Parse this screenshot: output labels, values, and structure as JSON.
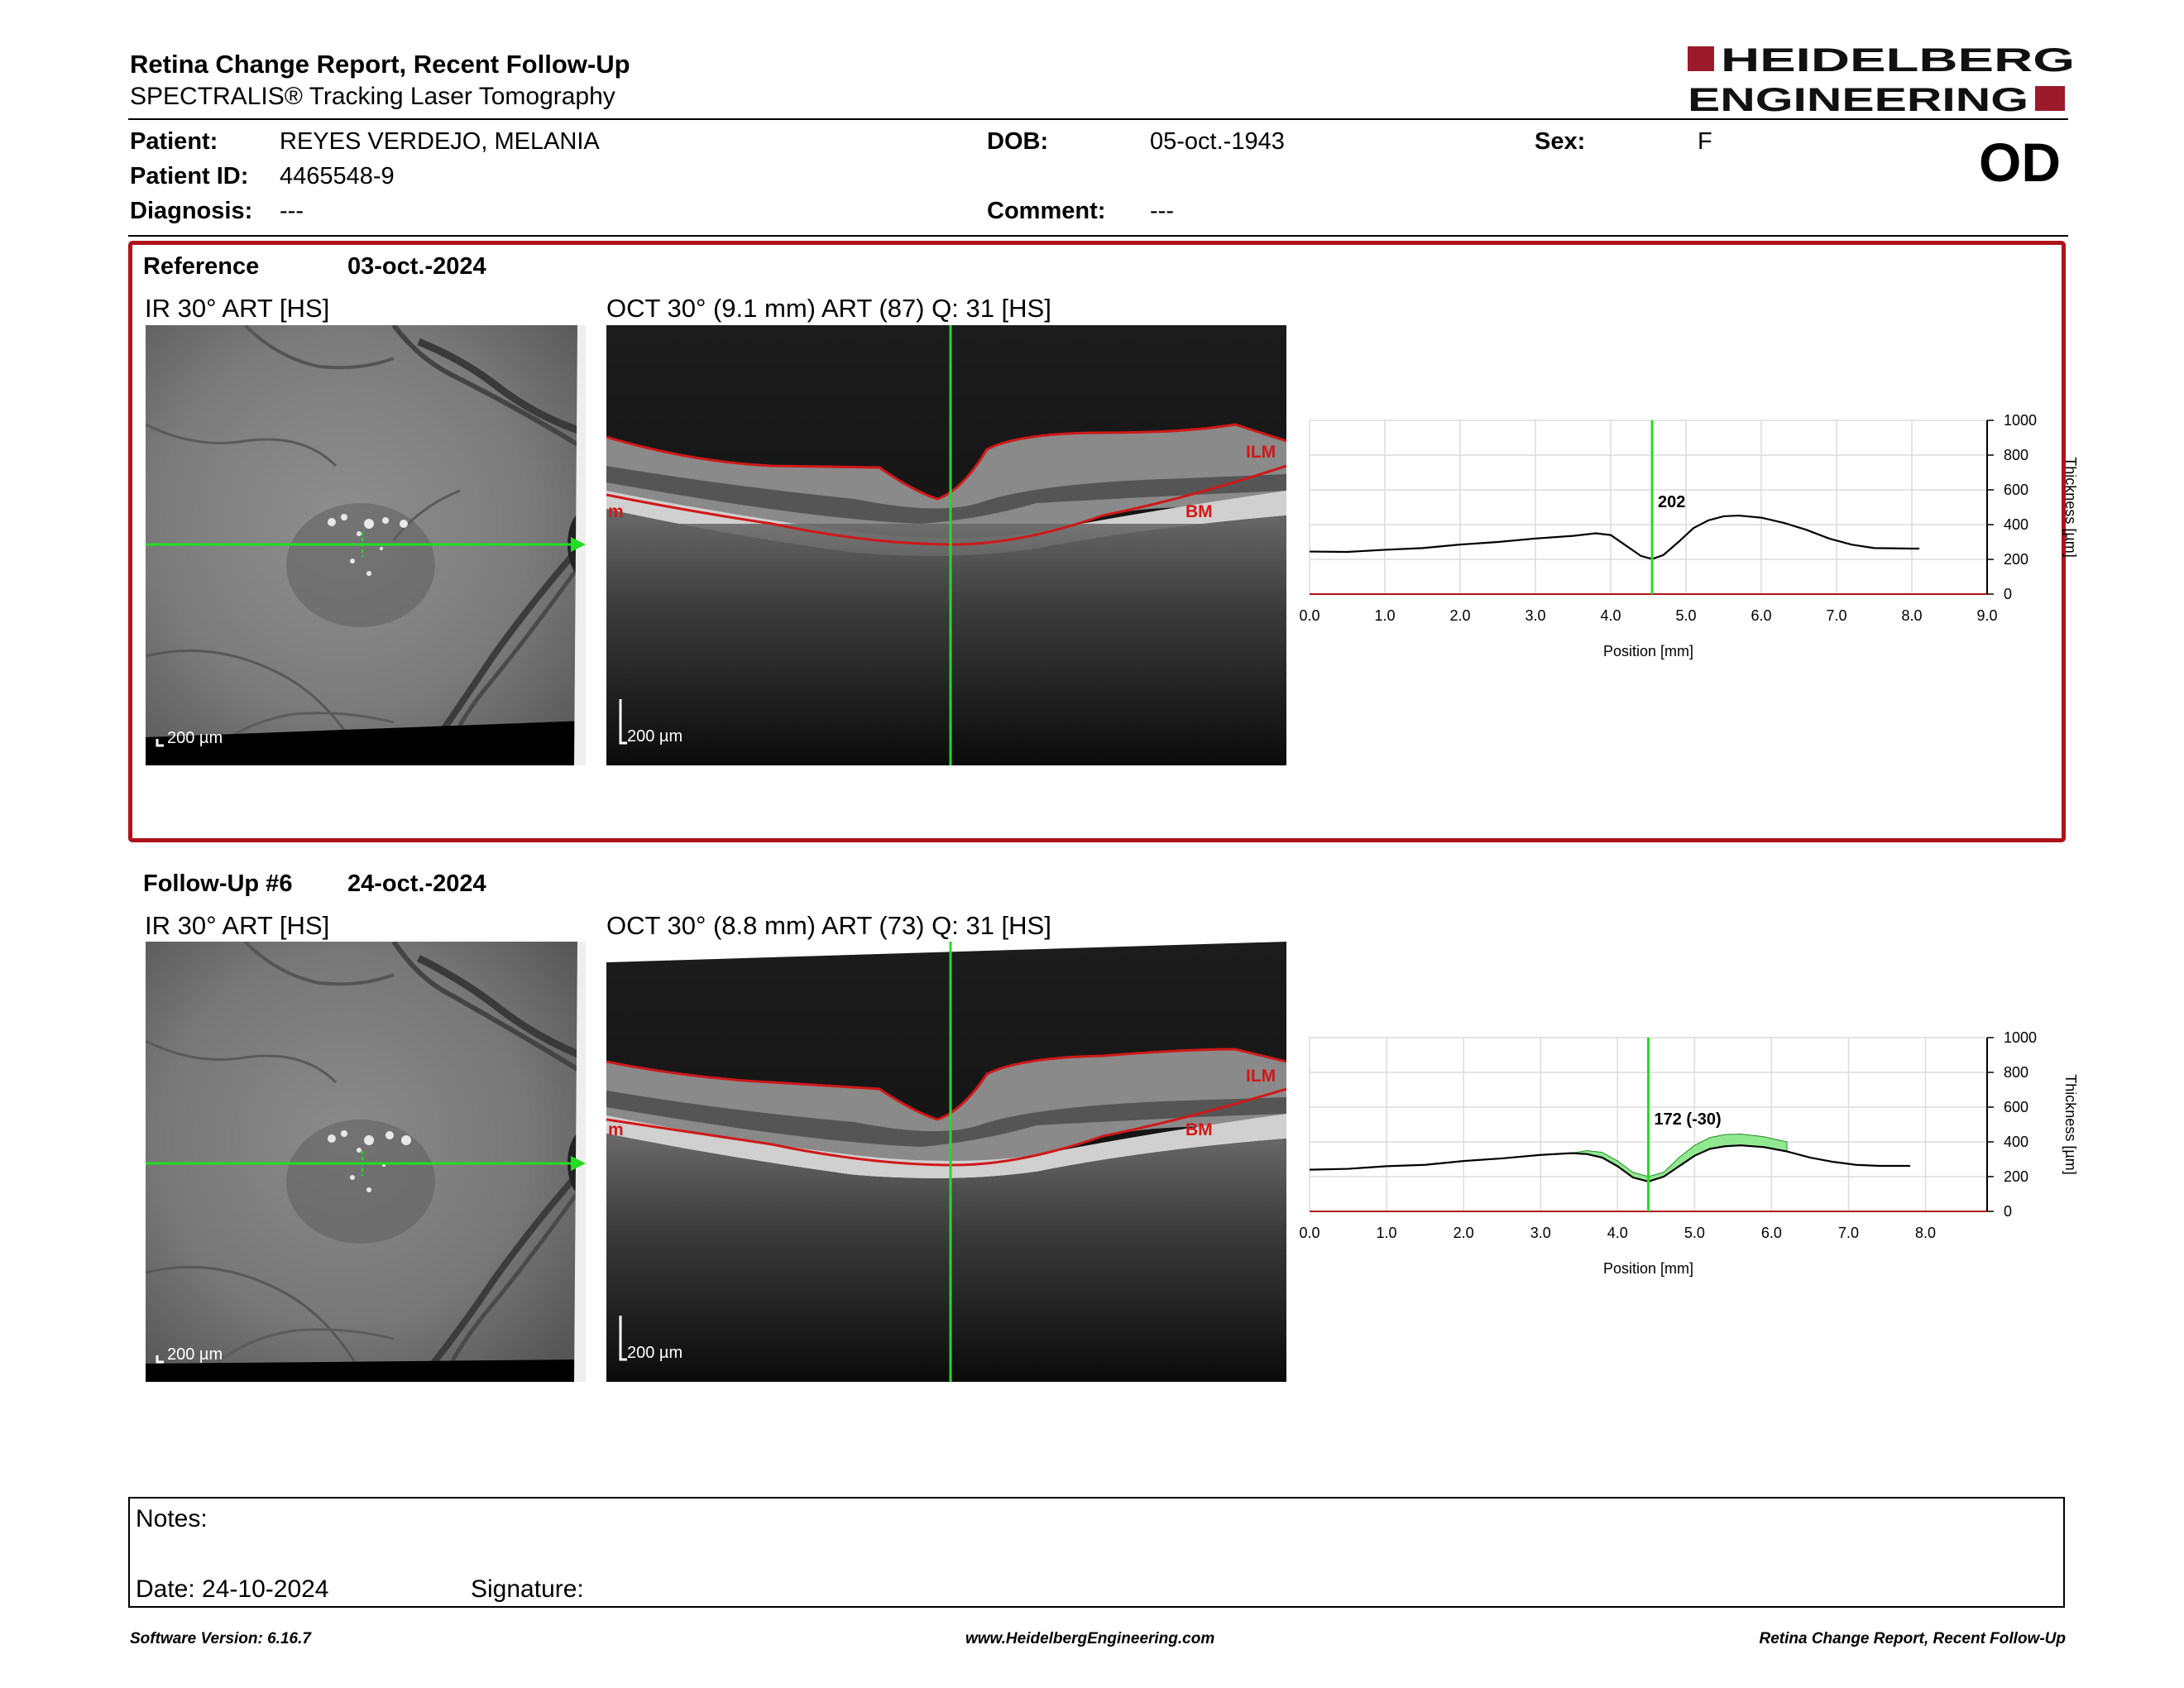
{
  "header": {
    "title": "Retina Change Report, Recent Follow-Up",
    "subtitle": "SPECTRALIS® Tracking Laser Tomography",
    "logo_line1": "HEIDELBERG",
    "logo_line2": "ENGINEERING",
    "eye": "OD"
  },
  "patient": {
    "name_label": "Patient:",
    "name": "REYES VERDEJO, MELANIA",
    "id_label": "Patient ID:",
    "id": "4465548-9",
    "diagnosis_label": "Diagnosis:",
    "diagnosis": "---",
    "dob_label": "DOB:",
    "dob": "05-oct.-1943",
    "comment_label": "Comment:",
    "comment": "---",
    "sex_label": "Sex:",
    "sex": "F"
  },
  "reference": {
    "label": "Reference",
    "date": "03-oct.-2024",
    "ir_title": "IR 30° ART [HS]",
    "oct_title": "OCT 30° (9.1 mm) ART (87) Q: 31 [HS]",
    "ir_scale": "200 µm",
    "oct_scale": "200 µm",
    "layer_top": "ILM",
    "layer_bottom": "BM",
    "layer_left": "m"
  },
  "followup": {
    "label": "Follow-Up #6",
    "date": "24-oct.-2024",
    "ir_title": "IR 30° ART [HS]",
    "oct_title": "OCT 30° (8.8 mm) ART (73) Q: 31 [HS]",
    "ir_scale": "200 µm",
    "oct_scale": "200 µm",
    "layer_top": "ILM",
    "layer_bottom": "BM",
    "layer_left": "m"
  },
  "chart_data": [
    {
      "type": "line",
      "xlabel": "Position [mm]",
      "ylabel": "Thickness [µm]",
      "xlim": [
        0,
        9.0
      ],
      "ylim": [
        0,
        1000
      ],
      "x_ticks": [
        "0.0",
        "1.0",
        "2.0",
        "3.0",
        "4.0",
        "5.0",
        "6.0",
        "7.0",
        "8.0",
        "9.0"
      ],
      "y_ticks": [
        "0",
        "200",
        "400",
        "600",
        "800",
        "1000"
      ],
      "cursor_x": 4.55,
      "cursor_label": "202",
      "grid": true,
      "series": [
        {
          "x": [
            0.0,
            0.5,
            1.0,
            1.5,
            2.0,
            2.5,
            3.0,
            3.5,
            3.8,
            4.0,
            4.2,
            4.4,
            4.55,
            4.7,
            4.9,
            5.1,
            5.3,
            5.5,
            5.7,
            6.0,
            6.3,
            6.6,
            6.9,
            7.2,
            7.5,
            8.0,
            8.1
          ],
          "y": [
            245,
            243,
            255,
            265,
            285,
            300,
            320,
            335,
            350,
            340,
            280,
            220,
            202,
            225,
            300,
            380,
            425,
            448,
            452,
            440,
            410,
            370,
            320,
            285,
            265,
            262,
            262
          ]
        }
      ]
    },
    {
      "type": "line",
      "xlabel": "Position [mm]",
      "ylabel": "Thickness [µm]",
      "xlim": [
        0,
        8.8
      ],
      "ylim": [
        0,
        1000
      ],
      "x_ticks": [
        "0.0",
        "1.0",
        "2.0",
        "3.0",
        "4.0",
        "5.0",
        "6.0",
        "7.0",
        "8.0"
      ],
      "y_ticks": [
        "0",
        "200",
        "400",
        "600",
        "800",
        "1000"
      ],
      "cursor_x": 4.4,
      "cursor_label": "172 (-30)",
      "grid": true,
      "series": [
        {
          "x": [
            0.0,
            0.5,
            1.0,
            1.5,
            2.0,
            2.5,
            3.0,
            3.4,
            3.6,
            3.8,
            4.0,
            4.2,
            4.4,
            4.6,
            4.8,
            5.0,
            5.2,
            5.4,
            5.6,
            5.9,
            6.2,
            6.5,
            6.8,
            7.1,
            7.4,
            7.8
          ],
          "y": [
            240,
            245,
            260,
            268,
            290,
            305,
            325,
            335,
            330,
            310,
            260,
            195,
            172,
            200,
            260,
            320,
            360,
            375,
            380,
            370,
            345,
            310,
            285,
            268,
            262,
            262
          ]
        },
        {
          "x": [
            3.4,
            3.6,
            3.8,
            4.0,
            4.2,
            4.4,
            4.6,
            4.8,
            5.0,
            5.2,
            5.4,
            5.6,
            5.9,
            6.2
          ],
          "y": [
            335,
            350,
            340,
            290,
            225,
            200,
            225,
            310,
            380,
            425,
            442,
            445,
            430,
            400
          ]
        }
      ]
    }
  ],
  "notes": {
    "notes_label": "Notes:",
    "date_label": "Date: 24-10-2024",
    "signature_label": "Signature:"
  },
  "footer": {
    "software": "Software Version: 6.16.7",
    "website": "www.HeidelbergEngineering.com",
    "report_name": "Retina Change Report, Recent Follow-Up"
  },
  "colors": {
    "brand_red": "#b0121b",
    "cursor_green": "#22dd22",
    "segment_red": "#d01818",
    "change_fill": "#90e890"
  }
}
